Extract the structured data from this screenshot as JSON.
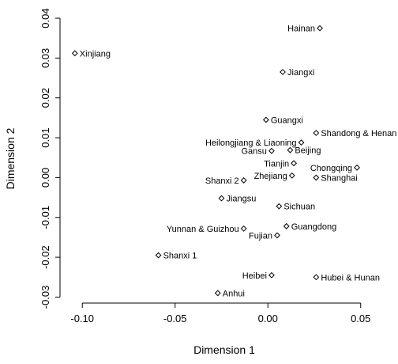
{
  "chart_data": {
    "type": "scatter",
    "xlabel": "Dimension 1",
    "ylabel": "Dimension 2",
    "xlim": [
      -0.112,
      0.065
    ],
    "ylim": [
      -0.0315,
      0.041
    ],
    "xticks": [
      -0.1,
      -0.05,
      0.0,
      0.05
    ],
    "xtick_labels": [
      "-0.10",
      "-0.05",
      "0.00",
      "0.05"
    ],
    "yticks": [
      -0.03,
      -0.02,
      -0.01,
      0.0,
      0.01,
      0.02,
      0.03,
      0.04
    ],
    "ytick_labels": [
      "-0.03",
      "-0.02",
      "-0.01",
      "0.00",
      "0.01",
      "0.02",
      "0.03",
      "0.04"
    ],
    "grid": false,
    "points": [
      {
        "label": "Hainan",
        "x": 0.028,
        "y": 0.0375,
        "pos": "left"
      },
      {
        "label": "Xinjiang",
        "x": -0.104,
        "y": 0.0312,
        "pos": "right"
      },
      {
        "label": "Jiangxi",
        "x": 0.008,
        "y": 0.0265,
        "pos": "right"
      },
      {
        "label": "Guangxi",
        "x": -0.001,
        "y": 0.0145,
        "pos": "right"
      },
      {
        "label": "Shandong & Henan",
        "x": 0.026,
        "y": 0.0112,
        "pos": "right"
      },
      {
        "label": "Heilongjiang & Liaoning",
        "x": 0.018,
        "y": 0.0088,
        "pos": "left"
      },
      {
        "label": "Gansu",
        "x": 0.002,
        "y": 0.0067,
        "pos": "left"
      },
      {
        "label": "Beijing",
        "x": 0.012,
        "y": 0.0069,
        "pos": "right"
      },
      {
        "label": "Tianjin",
        "x": 0.014,
        "y": 0.0036,
        "pos": "left"
      },
      {
        "label": "Chongqing",
        "x": 0.048,
        "y": 0.0025,
        "pos": "left"
      },
      {
        "label": "Zhejiang",
        "x": 0.013,
        "y": 0.0005,
        "pos": "left"
      },
      {
        "label": "Shanghai",
        "x": 0.026,
        "y": 0.0,
        "pos": "right"
      },
      {
        "label": "Shanxi 2",
        "x": -0.013,
        "y": -0.0007,
        "pos": "left"
      },
      {
        "label": "Jiangsu",
        "x": -0.025,
        "y": -0.0052,
        "pos": "right"
      },
      {
        "label": "Sichuan",
        "x": 0.006,
        "y": -0.0072,
        "pos": "right"
      },
      {
        "label": "Yunnan & Guizhou",
        "x": -0.013,
        "y": -0.0128,
        "pos": "left"
      },
      {
        "label": "Guangdong",
        "x": 0.01,
        "y": -0.0122,
        "pos": "right"
      },
      {
        "label": "Fujian",
        "x": 0.005,
        "y": -0.0145,
        "pos": "left"
      },
      {
        "label": "Shanxi 1",
        "x": -0.059,
        "y": -0.0195,
        "pos": "right"
      },
      {
        "label": "Heibei",
        "x": 0.002,
        "y": -0.0245,
        "pos": "left"
      },
      {
        "label": "Hubei & Hunan",
        "x": 0.026,
        "y": -0.025,
        "pos": "right"
      },
      {
        "label": "Anhui",
        "x": -0.027,
        "y": -0.029,
        "pos": "right"
      }
    ]
  }
}
